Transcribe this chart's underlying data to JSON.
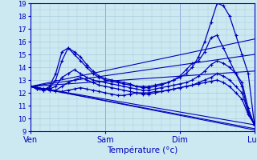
{
  "background_color": "#cce8f0",
  "grid_color": "#aaccdd",
  "line_color": "#0000bb",
  "marker_color": "#0000bb",
  "xlabel": "Température (°c)",
  "ylim": [
    9,
    19
  ],
  "xlim": [
    0,
    72
  ],
  "yticks": [
    9,
    10,
    11,
    12,
    13,
    14,
    15,
    16,
    17,
    18,
    19
  ],
  "day_positions": [
    0,
    24,
    48,
    72
  ],
  "day_labels": [
    "Ven",
    "Sam",
    "Dim",
    "Lun"
  ],
  "series": [
    {
      "x": [
        0,
        72
      ],
      "y": [
        12.5,
        16.2
      ],
      "markers": false
    },
    {
      "x": [
        0,
        72
      ],
      "y": [
        12.5,
        15.0
      ],
      "markers": false
    },
    {
      "x": [
        0,
        72
      ],
      "y": [
        12.5,
        13.7
      ],
      "markers": false
    },
    {
      "x": [
        0,
        72
      ],
      "y": [
        12.5,
        9.5
      ],
      "markers": false
    },
    {
      "x": [
        0,
        72
      ],
      "y": [
        12.5,
        9.2
      ],
      "markers": false
    },
    {
      "x": [
        0,
        72
      ],
      "y": [
        12.5,
        9.1
      ],
      "markers": false
    },
    {
      "x": [
        0,
        2,
        4,
        6,
        8,
        10,
        12,
        14,
        16,
        18,
        20,
        22,
        24,
        26,
        28,
        30,
        32,
        34,
        36,
        38,
        40,
        42,
        44,
        46,
        48,
        50,
        52,
        54,
        56,
        58,
        60,
        62,
        64,
        66,
        68,
        70,
        72
      ],
      "y": [
        12.5,
        12.3,
        12.2,
        12.5,
        13.5,
        15.2,
        15.5,
        15.0,
        14.5,
        14.0,
        13.5,
        13.2,
        13.0,
        12.9,
        12.8,
        12.7,
        12.6,
        12.5,
        12.5,
        12.5,
        12.6,
        12.7,
        12.8,
        13.0,
        13.2,
        13.5,
        14.0,
        14.8,
        16.0,
        17.5,
        19.0,
        18.8,
        18.0,
        16.5,
        15.0,
        13.5,
        9.5
      ],
      "markers": true
    },
    {
      "x": [
        0,
        2,
        4,
        6,
        8,
        10,
        12,
        14,
        16,
        18,
        20,
        22,
        24,
        26,
        28,
        30,
        32,
        34,
        36,
        38,
        40,
        42,
        44,
        46,
        48,
        50,
        52,
        54,
        56,
        58,
        60,
        62,
        64,
        66,
        68,
        70,
        72
      ],
      "y": [
        12.5,
        12.3,
        12.2,
        12.4,
        13.0,
        14.5,
        15.5,
        15.2,
        14.8,
        14.2,
        13.7,
        13.3,
        13.1,
        13.0,
        12.9,
        12.8,
        12.7,
        12.5,
        12.4,
        12.4,
        12.5,
        12.6,
        12.8,
        13.0,
        13.3,
        13.8,
        14.3,
        14.5,
        15.2,
        16.3,
        16.5,
        15.5,
        14.5,
        13.5,
        12.5,
        10.5,
        9.5
      ],
      "markers": true
    },
    {
      "x": [
        0,
        2,
        4,
        6,
        8,
        10,
        12,
        14,
        16,
        18,
        20,
        22,
        24,
        26,
        28,
        30,
        32,
        34,
        36,
        38,
        40,
        42,
        44,
        46,
        48,
        50,
        52,
        54,
        56,
        58,
        60,
        62,
        64,
        66,
        68,
        70,
        72
      ],
      "y": [
        12.5,
        12.4,
        12.3,
        12.3,
        12.5,
        13.2,
        13.5,
        13.8,
        13.5,
        13.2,
        13.0,
        12.9,
        12.8,
        12.7,
        12.6,
        12.5,
        12.4,
        12.3,
        12.2,
        12.2,
        12.3,
        12.4,
        12.5,
        12.6,
        12.7,
        12.8,
        13.0,
        13.3,
        13.7,
        14.2,
        14.5,
        14.3,
        14.0,
        13.5,
        12.8,
        10.8,
        9.5
      ],
      "markers": true
    },
    {
      "x": [
        0,
        2,
        4,
        6,
        8,
        10,
        12,
        14,
        16,
        18,
        20,
        22,
        24,
        26,
        28,
        30,
        32,
        34,
        36,
        38,
        40,
        42,
        44,
        46,
        48,
        50,
        52,
        54,
        56,
        58,
        60,
        62,
        64,
        66,
        68,
        70,
        72
      ],
      "y": [
        12.5,
        12.4,
        12.3,
        12.2,
        12.2,
        12.5,
        12.8,
        13.0,
        13.2,
        13.0,
        12.8,
        12.6,
        12.5,
        12.4,
        12.3,
        12.2,
        12.1,
        12.0,
        11.9,
        11.9,
        12.0,
        12.1,
        12.2,
        12.3,
        12.4,
        12.5,
        12.6,
        12.8,
        13.0,
        13.2,
        13.5,
        13.3,
        13.0,
        12.5,
        12.0,
        10.5,
        9.5
      ],
      "markers": true
    },
    {
      "x": [
        0,
        2,
        4,
        6,
        8,
        10,
        12,
        14,
        16,
        18,
        20,
        22,
        24,
        26,
        28,
        30,
        32,
        34,
        36,
        38,
        40,
        42,
        44,
        46,
        48,
        50,
        52,
        54,
        56,
        58,
        60,
        62,
        64,
        66,
        68,
        70,
        72
      ],
      "y": [
        12.5,
        12.4,
        12.3,
        12.2,
        12.1,
        12.1,
        12.2,
        12.3,
        12.4,
        12.3,
        12.2,
        12.1,
        12.0,
        11.9,
        11.8,
        11.8,
        11.9,
        12.0,
        12.0,
        12.0,
        12.1,
        12.1,
        12.2,
        12.3,
        12.4,
        12.5,
        12.6,
        12.7,
        12.8,
        12.9,
        13.0,
        12.8,
        12.5,
        12.0,
        11.5,
        10.3,
        9.5
      ],
      "markers": true
    }
  ]
}
